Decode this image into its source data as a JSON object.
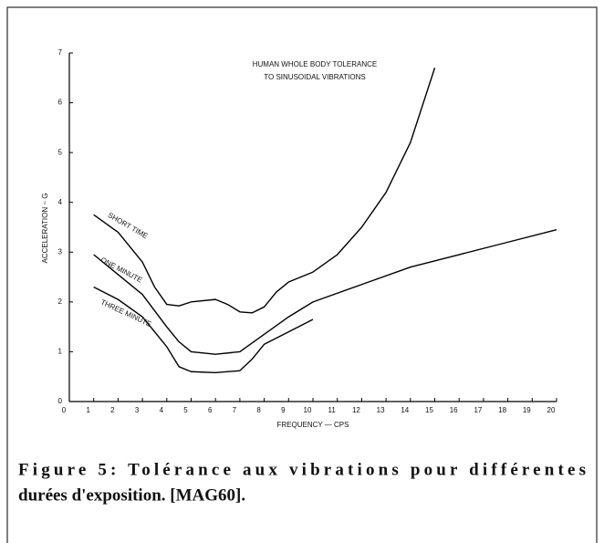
{
  "chart_data": {
    "type": "line",
    "title": [
      "HUMAN WHOLE BODY TOLERANCE",
      "TO SINUSOIDAL VIBRATIONS"
    ],
    "x_label": "FREQUENCY — CPS",
    "y_label": "ACCELERATION ~ G",
    "caption": [
      "Figure 5: Tolérance aux vibrations pour différentes",
      "durées d'exposition. [MAG60]."
    ],
    "series": [
      {
        "name": "SHORT TIME",
        "color": "#000000",
        "x": [
          1,
          2,
          3,
          3.5,
          4,
          4.5,
          5,
          6,
          6.5,
          7,
          7.5,
          8,
          8.5,
          9,
          10,
          11,
          12,
          13,
          14,
          15
        ],
        "values": [
          3.75,
          3.4,
          2.8,
          2.3,
          1.95,
          1.92,
          2.0,
          2.05,
          1.95,
          1.8,
          1.78,
          1.9,
          2.2,
          2.4,
          2.6,
          2.95,
          3.5,
          4.2,
          5.2,
          6.7
        ]
      },
      {
        "name": "ONE MINUTE",
        "color": "#000000",
        "x": [
          1,
          2,
          3,
          4,
          4.5,
          5,
          6,
          7,
          8,
          9,
          10,
          12,
          14,
          16,
          18,
          20
        ],
        "values": [
          2.95,
          2.55,
          2.15,
          1.5,
          1.2,
          1.0,
          0.95,
          1.0,
          1.35,
          1.7,
          2.0,
          2.35,
          2.7,
          2.95,
          3.2,
          3.45
        ]
      },
      {
        "name": "THREE MINUTE",
        "color": "#000000",
        "x": [
          1,
          2,
          3,
          4,
          4.5,
          5,
          6,
          7,
          7.5,
          8,
          9,
          10
        ],
        "values": [
          2.3,
          2.05,
          1.7,
          1.1,
          0.7,
          0.6,
          0.58,
          0.62,
          0.85,
          1.15,
          1.4,
          1.65
        ]
      }
    ],
    "xlim": [
      0,
      20
    ],
    "xticks": [
      0,
      1,
      2,
      3,
      4,
      5,
      6,
      7,
      8,
      9,
      10,
      11,
      12,
      13,
      14,
      15,
      16,
      17,
      18,
      19,
      20
    ],
    "ylim": [
      0,
      7
    ],
    "yticks": [
      0,
      1,
      2,
      3,
      4,
      5,
      6,
      7
    ]
  }
}
